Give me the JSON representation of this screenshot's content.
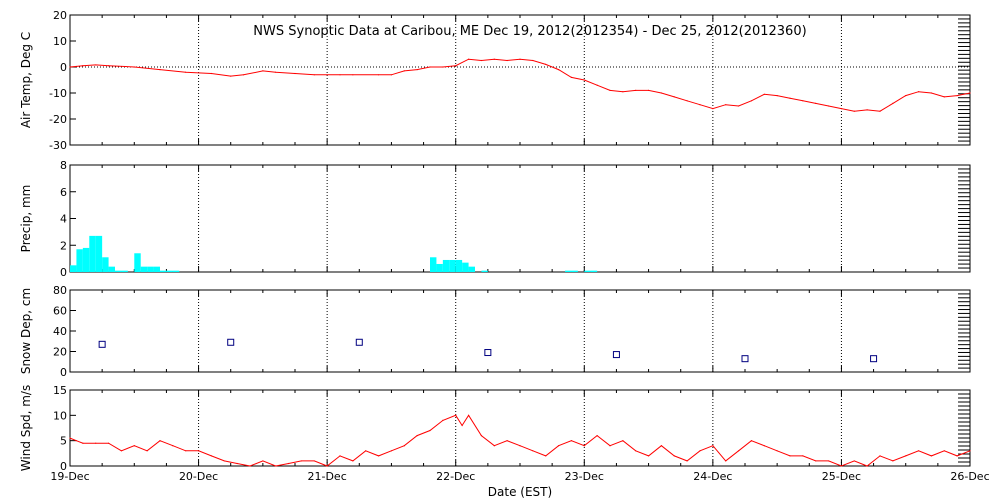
{
  "title": "NWS Synoptic Data at Caribou, ME    Dec 19, 2012(2012354) - Dec 25, 2012(2012360)",
  "xlabel": "Date (EST)",
  "colors": {
    "temp": "#ff0000",
    "precip": "#00ffff",
    "snow": "#000080",
    "wind": "#ff0000",
    "axis": "#000000"
  },
  "chart_data": [
    {
      "type": "line",
      "name": "air-temp",
      "ylabel": "Air Temp, Deg C",
      "ylim": [
        -30,
        20
      ],
      "yticks": [
        20,
        10,
        0,
        -10,
        -20,
        -30
      ],
      "xlim": [
        0,
        7
      ],
      "xtick_labels": [
        "19-Dec",
        "20-Dec",
        "21-Dec",
        "22-Dec",
        "23-Dec",
        "24-Dec",
        "25-Dec",
        "26-Dec"
      ],
      "grid": true,
      "series": [
        {
          "x": [
            0,
            0.1,
            0.2,
            0.3,
            0.5,
            0.7,
            0.9,
            1.1,
            1.25,
            1.35,
            1.5,
            1.6,
            1.75,
            1.9,
            2.1,
            2.2,
            2.4,
            2.5,
            2.6,
            2.7,
            2.8,
            2.9,
            3.0,
            3.1,
            3.2,
            3.3,
            3.4,
            3.5,
            3.6,
            3.7,
            3.8,
            3.9,
            4.0,
            4.1,
            4.2,
            4.3,
            4.4,
            4.5,
            4.6,
            4.7,
            4.8,
            4.9,
            5.0,
            5.1,
            5.2,
            5.3,
            5.4,
            5.5,
            5.6,
            5.7,
            5.8,
            5.9,
            6.0,
            6.1,
            6.2,
            6.3,
            6.4,
            6.5,
            6.6,
            6.7,
            6.8,
            6.9,
            7.0
          ],
          "y": [
            0,
            0.5,
            0.8,
            0.5,
            0,
            -1,
            -2,
            -2.5,
            -3.5,
            -3,
            -1.5,
            -2,
            -2.5,
            -3,
            -3,
            -3,
            -3,
            -3,
            -1.5,
            -1,
            0,
            0,
            0.5,
            3,
            2.5,
            3,
            2.5,
            3,
            2.5,
            1,
            -1,
            -4,
            -5,
            -7,
            -9,
            -9.5,
            -9,
            -9,
            -10,
            -11.5,
            -13,
            -14.5,
            -16,
            -14.5,
            -15,
            -13,
            -10.5,
            -11,
            -12,
            -13,
            -14,
            -15,
            -16,
            -17,
            -16.5,
            -17,
            -14,
            -11,
            -9.5,
            -10,
            -11.5,
            -11,
            -10
          ]
        }
      ]
    },
    {
      "type": "bar",
      "name": "precip",
      "ylabel": "Precip, mm",
      "ylim": [
        0,
        8
      ],
      "yticks": [
        8,
        6,
        4,
        2,
        0
      ],
      "xlim": [
        0,
        7
      ],
      "grid": true,
      "series": [
        {
          "x": [
            0,
            0.05,
            0.1,
            0.15,
            0.2,
            0.25,
            0.3,
            0.35,
            0.4,
            0.5,
            0.55,
            0.6,
            0.65,
            0.7,
            0.75,
            0.8,
            2.8,
            2.85,
            2.9,
            2.95,
            3.0,
            3.05,
            3.1,
            3.2,
            3.85,
            3.9,
            4.0,
            4.05
          ],
          "y": [
            0.5,
            1.7,
            1.8,
            2.7,
            2.7,
            1.1,
            0.4,
            0.1,
            0.1,
            1.4,
            0.4,
            0.4,
            0.4,
            0.1,
            0.1,
            0.1,
            1.1,
            0.6,
            0.9,
            0.9,
            0.9,
            0.7,
            0.4,
            0.1,
            0.1,
            0.1,
            0.1,
            0.1
          ]
        }
      ]
    },
    {
      "type": "scatter",
      "name": "snow-depth",
      "ylabel": "Snow Dep, cm",
      "ylim": [
        0,
        80
      ],
      "yticks": [
        80,
        60,
        40,
        20,
        0
      ],
      "xlim": [
        0,
        7
      ],
      "grid": true,
      "series": [
        {
          "x": [
            0.25,
            1.25,
            2.25,
            3.25,
            4.25,
            5.25,
            6.25
          ],
          "y": [
            27,
            29,
            29,
            19,
            17,
            13,
            13
          ]
        }
      ]
    },
    {
      "type": "line",
      "name": "wind-speed",
      "ylabel": "Wind Spd, m/s",
      "ylim": [
        0,
        15
      ],
      "yticks": [
        15,
        10,
        5,
        0
      ],
      "xlim": [
        0,
        7
      ],
      "xtick_labels": [
        "19-Dec",
        "20-Dec",
        "21-Dec",
        "22-Dec",
        "23-Dec",
        "24-Dec",
        "25-Dec",
        "26-Dec"
      ],
      "grid": true,
      "series": [
        {
          "x": [
            0,
            0.05,
            0.1,
            0.2,
            0.3,
            0.4,
            0.5,
            0.6,
            0.7,
            0.8,
            0.9,
            1.0,
            1.1,
            1.2,
            1.3,
            1.4,
            1.5,
            1.6,
            1.7,
            1.8,
            1.9,
            2.0,
            2.1,
            2.2,
            2.3,
            2.4,
            2.5,
            2.6,
            2.7,
            2.8,
            2.9,
            3.0,
            3.05,
            3.1,
            3.2,
            3.3,
            3.4,
            3.5,
            3.6,
            3.7,
            3.8,
            3.9,
            4.0,
            4.1,
            4.2,
            4.3,
            4.4,
            4.5,
            4.6,
            4.7,
            4.8,
            4.9,
            5.0,
            5.1,
            5.2,
            5.3,
            5.4,
            5.5,
            5.6,
            5.7,
            5.8,
            5.9,
            6.0,
            6.1,
            6.2,
            6.3,
            6.4,
            6.5,
            6.6,
            6.7,
            6.8,
            6.9,
            7.0
          ],
          "y": [
            5.5,
            5,
            4.5,
            4.5,
            4.5,
            3,
            4,
            3,
            5,
            4,
            3,
            3,
            2,
            1,
            0.5,
            0,
            1,
            0,
            0.5,
            1,
            1,
            0,
            2,
            1,
            3,
            2,
            3,
            4,
            6,
            7,
            9,
            10,
            8,
            10,
            6,
            4,
            5,
            4,
            3,
            2,
            4,
            5,
            4,
            6,
            4,
            5,
            3,
            2,
            4,
            2,
            1,
            3,
            4,
            1,
            3,
            5,
            4,
            3,
            2,
            2,
            1,
            1,
            0,
            1,
            0,
            2,
            1,
            2,
            3,
            2,
            3,
            2,
            3
          ]
        }
      ]
    }
  ]
}
